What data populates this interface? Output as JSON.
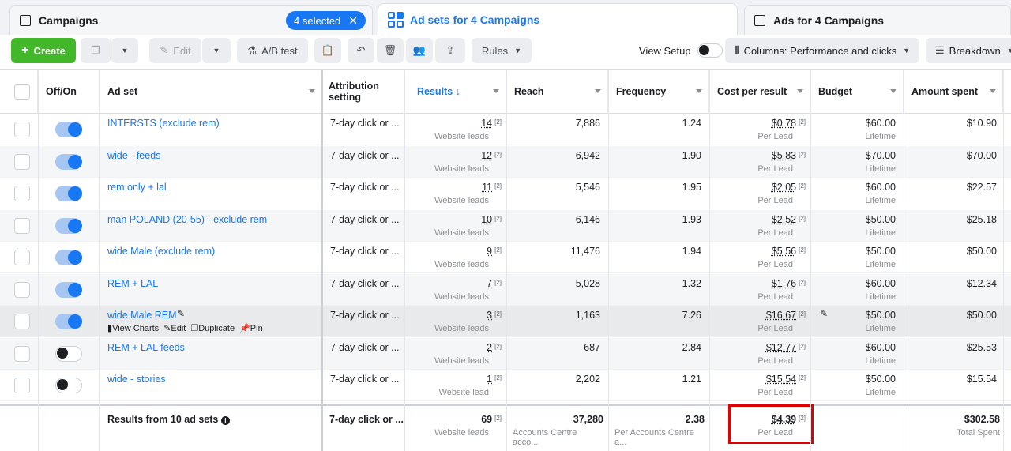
{
  "tabs": {
    "campaigns": "Campaigns",
    "selected": "4 selected",
    "adsets": "Ad sets for 4 Campaigns",
    "ads": "Ads for 4 Campaigns"
  },
  "toolbar": {
    "create": "Create",
    "edit": "Edit",
    "ab_test": "A/B test",
    "rules": "Rules",
    "view_setup": "View Setup",
    "columns": "Columns: Performance and clicks",
    "breakdown": "Breakdown"
  },
  "headers": {
    "off_on": "Off/On",
    "ad_set": "Ad set",
    "attribution": "Attribution setting",
    "results": "Results ↓",
    "reach": "Reach",
    "frequency": "Frequency",
    "cost": "Cost per result",
    "budget": "Budget",
    "spent": "Amount spent"
  },
  "rows": [
    {
      "name": "INTERSTS (exclude rem)",
      "on": true,
      "attr": "7-day click or ...",
      "results": "14",
      "results_sub": "Website leads",
      "reach": "7,886",
      "freq": "1.24",
      "cost": "$0.78",
      "cost_sub": "Per Lead",
      "budget": "$60.00",
      "budget_sub": "Lifetime",
      "spent": "$10.90"
    },
    {
      "name": "wide - feeds",
      "on": true,
      "attr": "7-day click or ...",
      "results": "12",
      "results_sub": "Website leads",
      "reach": "6,942",
      "freq": "1.90",
      "cost": "$5.83",
      "cost_sub": "Per Lead",
      "budget": "$70.00",
      "budget_sub": "Lifetime",
      "spent": "$70.00"
    },
    {
      "name": "rem only + lal",
      "on": true,
      "attr": "7-day click or ...",
      "results": "11",
      "results_sub": "Website leads",
      "reach": "5,546",
      "freq": "1.95",
      "cost": "$2.05",
      "cost_sub": "Per Lead",
      "budget": "$60.00",
      "budget_sub": "Lifetime",
      "spent": "$22.57"
    },
    {
      "name": "man POLAND (20-55) - exclude rem",
      "on": true,
      "attr": "7-day click or ...",
      "results": "10",
      "results_sub": "Website leads",
      "reach": "6,146",
      "freq": "1.93",
      "cost": "$2.52",
      "cost_sub": "Per Lead",
      "budget": "$50.00",
      "budget_sub": "Lifetime",
      "spent": "$25.18"
    },
    {
      "name": "wide Male (exclude rem)",
      "on": true,
      "attr": "7-day click or ...",
      "results": "9",
      "results_sub": "Website leads",
      "reach": "11,476",
      "freq": "1.94",
      "cost": "$5.56",
      "cost_sub": "Per Lead",
      "budget": "$50.00",
      "budget_sub": "Lifetime",
      "spent": "$50.00"
    },
    {
      "name": "REM + LAL",
      "on": true,
      "attr": "7-day click or ...",
      "results": "7",
      "results_sub": "Website leads",
      "reach": "5,028",
      "freq": "1.32",
      "cost": "$1.76",
      "cost_sub": "Per Lead",
      "budget": "$60.00",
      "budget_sub": "Lifetime",
      "spent": "$12.34"
    },
    {
      "name": "wide Male REM",
      "on": true,
      "attr": "7-day click or ...",
      "results": "3",
      "results_sub": "Website leads",
      "reach": "1,163",
      "freq": "7.26",
      "cost": "$16.67",
      "cost_sub": "Per Lead",
      "budget": "$50.00",
      "budget_sub": "Lifetime",
      "spent": "$50.00"
    },
    {
      "name": "REM + LAL feeds",
      "on": false,
      "attr": "7-day click or ...",
      "results": "2",
      "results_sub": "Website leads",
      "reach": "687",
      "freq": "2.84",
      "cost": "$12.77",
      "cost_sub": "Per Lead",
      "budget": "$60.00",
      "budget_sub": "Lifetime",
      "spent": "$25.53"
    },
    {
      "name": "wide - stories",
      "on": false,
      "attr": "7-day click or ...",
      "results": "1",
      "results_sub": "Website lead",
      "reach": "2,202",
      "freq": "1.21",
      "cost": "$15.54",
      "cost_sub": "Per Lead",
      "budget": "$50.00",
      "budget_sub": "Lifetime",
      "spent": "$15.54"
    }
  ],
  "row_actions": {
    "view_charts": "View Charts",
    "edit": "Edit",
    "duplicate": "Duplicate",
    "pin": "Pin"
  },
  "footer": {
    "label": "Results from 10 ad sets",
    "attr": "7-day click or ...",
    "results": "69",
    "results_sub": "Website leads",
    "reach": "37,280",
    "reach_sub": "Accounts Centre acco...",
    "freq": "2.38",
    "freq_sub": "Per Accounts Centre a...",
    "cost": "$4.39",
    "cost_sub": "Per Lead",
    "spent": "$302.58",
    "spent_sub": "Total Spent"
  },
  "sup": "[2]"
}
